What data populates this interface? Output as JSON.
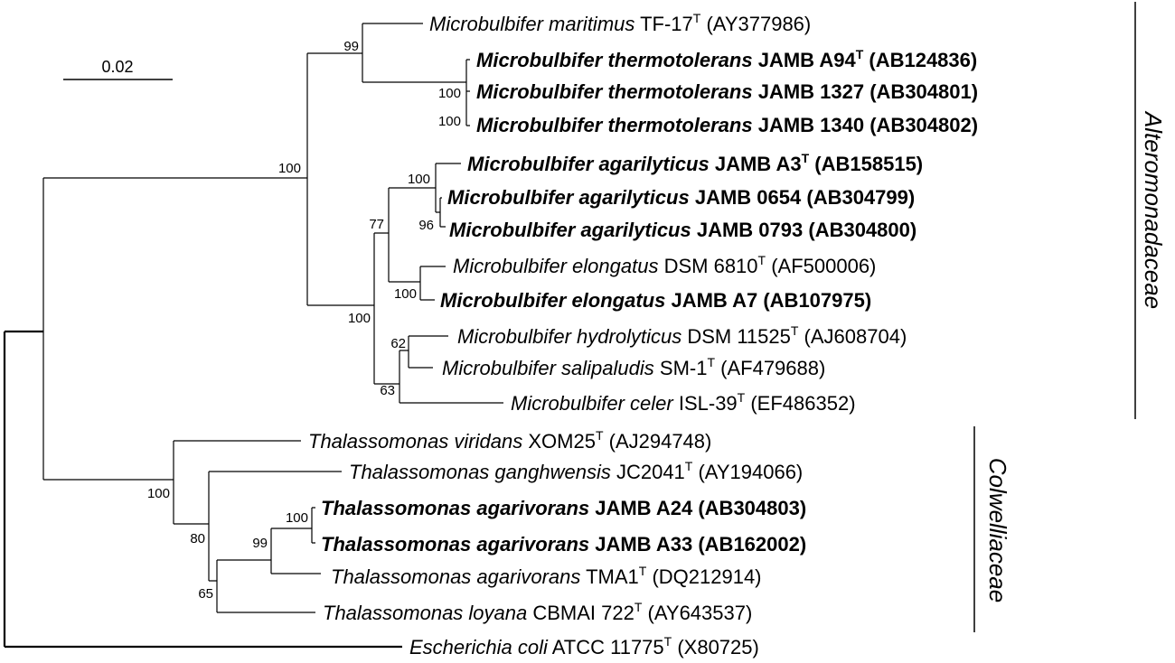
{
  "scale_bar": {
    "label": "0.02"
  },
  "taxa": [
    {
      "id": "t1",
      "genus": "Microbulbifer",
      "species": "maritimus",
      "strain": "TF-17",
      "type_strain": true,
      "accession": "(AY377986)",
      "bold": false
    },
    {
      "id": "t2",
      "genus": "Microbulbifer",
      "species": "thermotolerans",
      "strain": "JAMB A94",
      "type_strain": true,
      "accession": "(AB124836)",
      "bold": true
    },
    {
      "id": "t3",
      "genus": "Microbulbifer",
      "species": "thermotolerans",
      "strain": "JAMB 1327",
      "type_strain": false,
      "accession": "(AB304801)",
      "bold": true
    },
    {
      "id": "t4",
      "genus": "Microbulbifer",
      "species": "thermotolerans",
      "strain": "JAMB 1340",
      "type_strain": false,
      "accession": "(AB304802)",
      "bold": true
    },
    {
      "id": "t5",
      "genus": "Microbulbifer",
      "species": "agarilyticus",
      "strain": "JAMB A3",
      "type_strain": true,
      "accession": "(AB158515)",
      "bold": true
    },
    {
      "id": "t6",
      "genus": "Microbulbifer",
      "species": "agarilyticus",
      "strain": "JAMB 0654",
      "type_strain": false,
      "accession": "(AB304799)",
      "bold": true
    },
    {
      "id": "t7",
      "genus": "Microbulbifer",
      "species": "agarilyticus",
      "strain": "JAMB 0793",
      "type_strain": false,
      "accession": "(AB304800)",
      "bold": true
    },
    {
      "id": "t8",
      "genus": "Microbulbifer",
      "species": "elongatus",
      "strain": "DSM 6810",
      "type_strain": true,
      "accession": "(AF500006)",
      "bold": false
    },
    {
      "id": "t9",
      "genus": "Microbulbifer",
      "species": "elongatus",
      "strain": "JAMB A7",
      "type_strain": false,
      "accession": "(AB107975)",
      "bold": true
    },
    {
      "id": "t10",
      "genus": "Microbulbifer",
      "species": "hydrolyticus",
      "strain": "DSM 11525",
      "type_strain": true,
      "accession": "(AJ608704)",
      "bold": false
    },
    {
      "id": "t11",
      "genus": "Microbulbifer",
      "species": "salipaludis",
      "strain": "SM-1",
      "type_strain": true,
      "accession": "(AF479688)",
      "bold": false
    },
    {
      "id": "t12",
      "genus": "Microbulbifer",
      "species": "celer",
      "strain": "ISL-39",
      "type_strain": true,
      "accession": "(EF486352)",
      "bold": false
    },
    {
      "id": "t13",
      "genus": "Thalassomonas",
      "species": "viridans",
      "strain": "XOM25",
      "type_strain": true,
      "accession": "(AJ294748)",
      "bold": false
    },
    {
      "id": "t14",
      "genus": "Thalassomonas",
      "species": "ganghwensis",
      "strain": "JC2041",
      "type_strain": true,
      "accession": "(AY194066)",
      "bold": false
    },
    {
      "id": "t15",
      "genus": "Thalassomonas",
      "species": "agarivorans",
      "strain": "JAMB A24",
      "type_strain": false,
      "accession": "(AB304803)",
      "bold": true
    },
    {
      "id": "t16",
      "genus": "Thalassomonas",
      "species": "agarivorans",
      "strain": "JAMB A33",
      "type_strain": false,
      "accession": "(AB162002)",
      "bold": true
    },
    {
      "id": "t17",
      "genus": "Thalassomonas",
      "species": "agarivorans",
      "strain": "TMA1",
      "type_strain": true,
      "accession": "(DQ212914)",
      "bold": false
    },
    {
      "id": "t18",
      "genus": "Thalassomonas",
      "species": "loyana",
      "strain": "CBMAI 722",
      "type_strain": true,
      "accession": "(AY643537)",
      "bold": false
    },
    {
      "id": "t19",
      "genus": "Escherichia",
      "species": "coli",
      "strain": "ATCC 11775",
      "type_strain": true,
      "accession": "(X80725)",
      "bold": false
    }
  ],
  "type_marker": "T",
  "bootstrap_values": [
    "99",
    "100",
    "100",
    "100",
    "100",
    "96",
    "77",
    "100",
    "100",
    "62",
    "63",
    "100",
    "100",
    "99",
    "80",
    "65"
  ],
  "clades": [
    {
      "name": "Alteromonadaceae"
    },
    {
      "name": "Colwelliaceae"
    }
  ],
  "colors": {
    "line": "#000000",
    "text": "#000000",
    "background": "#ffffff"
  }
}
